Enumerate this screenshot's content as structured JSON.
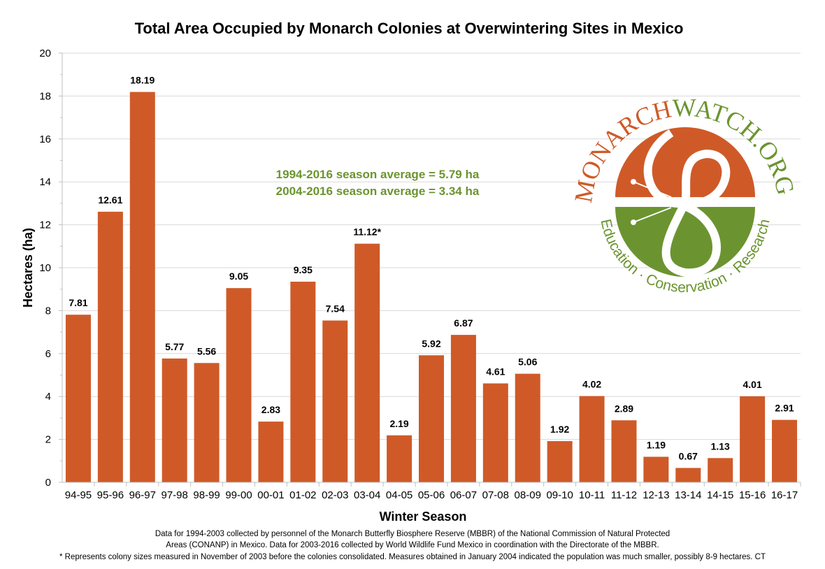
{
  "chart_data": {
    "type": "bar",
    "title": "Total Area Occupied by Monarch Colonies at Overwintering Sites in Mexico",
    "xlabel": "Winter Season",
    "ylabel": "Hectares (ha)",
    "ylim": [
      0,
      20
    ],
    "yticks": [
      0,
      2,
      4,
      6,
      8,
      10,
      12,
      14,
      16,
      18,
      20
    ],
    "grid": true,
    "categories": [
      "94-95",
      "95-96",
      "96-97",
      "97-98",
      "98-99",
      "99-00",
      "00-01",
      "01-02",
      "02-03",
      "03-04",
      "04-05",
      "05-06",
      "06-07",
      "07-08",
      "08-09",
      "09-10",
      "10-11",
      "11-12",
      "12-13",
      "13-14",
      "14-15",
      "15-16",
      "16-17"
    ],
    "values": [
      7.81,
      12.61,
      18.19,
      5.77,
      5.56,
      9.05,
      2.83,
      9.35,
      7.54,
      11.12,
      2.19,
      5.92,
      6.87,
      4.61,
      5.06,
      1.92,
      4.02,
      2.89,
      1.19,
      0.67,
      1.13,
      4.01,
      2.91
    ],
    "data_labels": [
      "7.81",
      "12.61",
      "18.19",
      "5.77",
      "5.56",
      "9.05",
      "2.83",
      "9.35",
      "7.54",
      "11.12*",
      "2.19",
      "5.92",
      "6.87",
      "4.61",
      "5.06",
      "1.92",
      "4.02",
      "2.89",
      "1.19",
      "0.67",
      "1.13",
      "4.01",
      "2.91"
    ],
    "bar_color": "#cf5a28",
    "annotations": [
      "1994-2016 season average = 5.79 ha",
      "2004-2016 season average = 3.34 ha"
    ],
    "annotation_color": "#6b9430"
  },
  "logo": {
    "top_text_1": "MONARCH",
    "top_text_2": "WATCH.ORG",
    "bottom_text": "Education · Conservation · Research",
    "orange": "#cf5a28",
    "green": "#6b9430"
  },
  "footnotes": [
    "Data for 1994-2003 collected by personnel of the Monarch Butterfly Biosphere Reserve (MBBR) of the National Commission of Natural Protected",
    "Areas (CONANP) in Mexico. Data for 2003-2016 collected by World Wildlife Fund Mexico in coordination with the Directorate of the MBBR.",
    "* Represents colony sizes measured in November of 2003 before the colonies consolidated. Measures obtained in January 2004 indicated the population was much smaller, possibly 8-9 hectares. CT"
  ]
}
